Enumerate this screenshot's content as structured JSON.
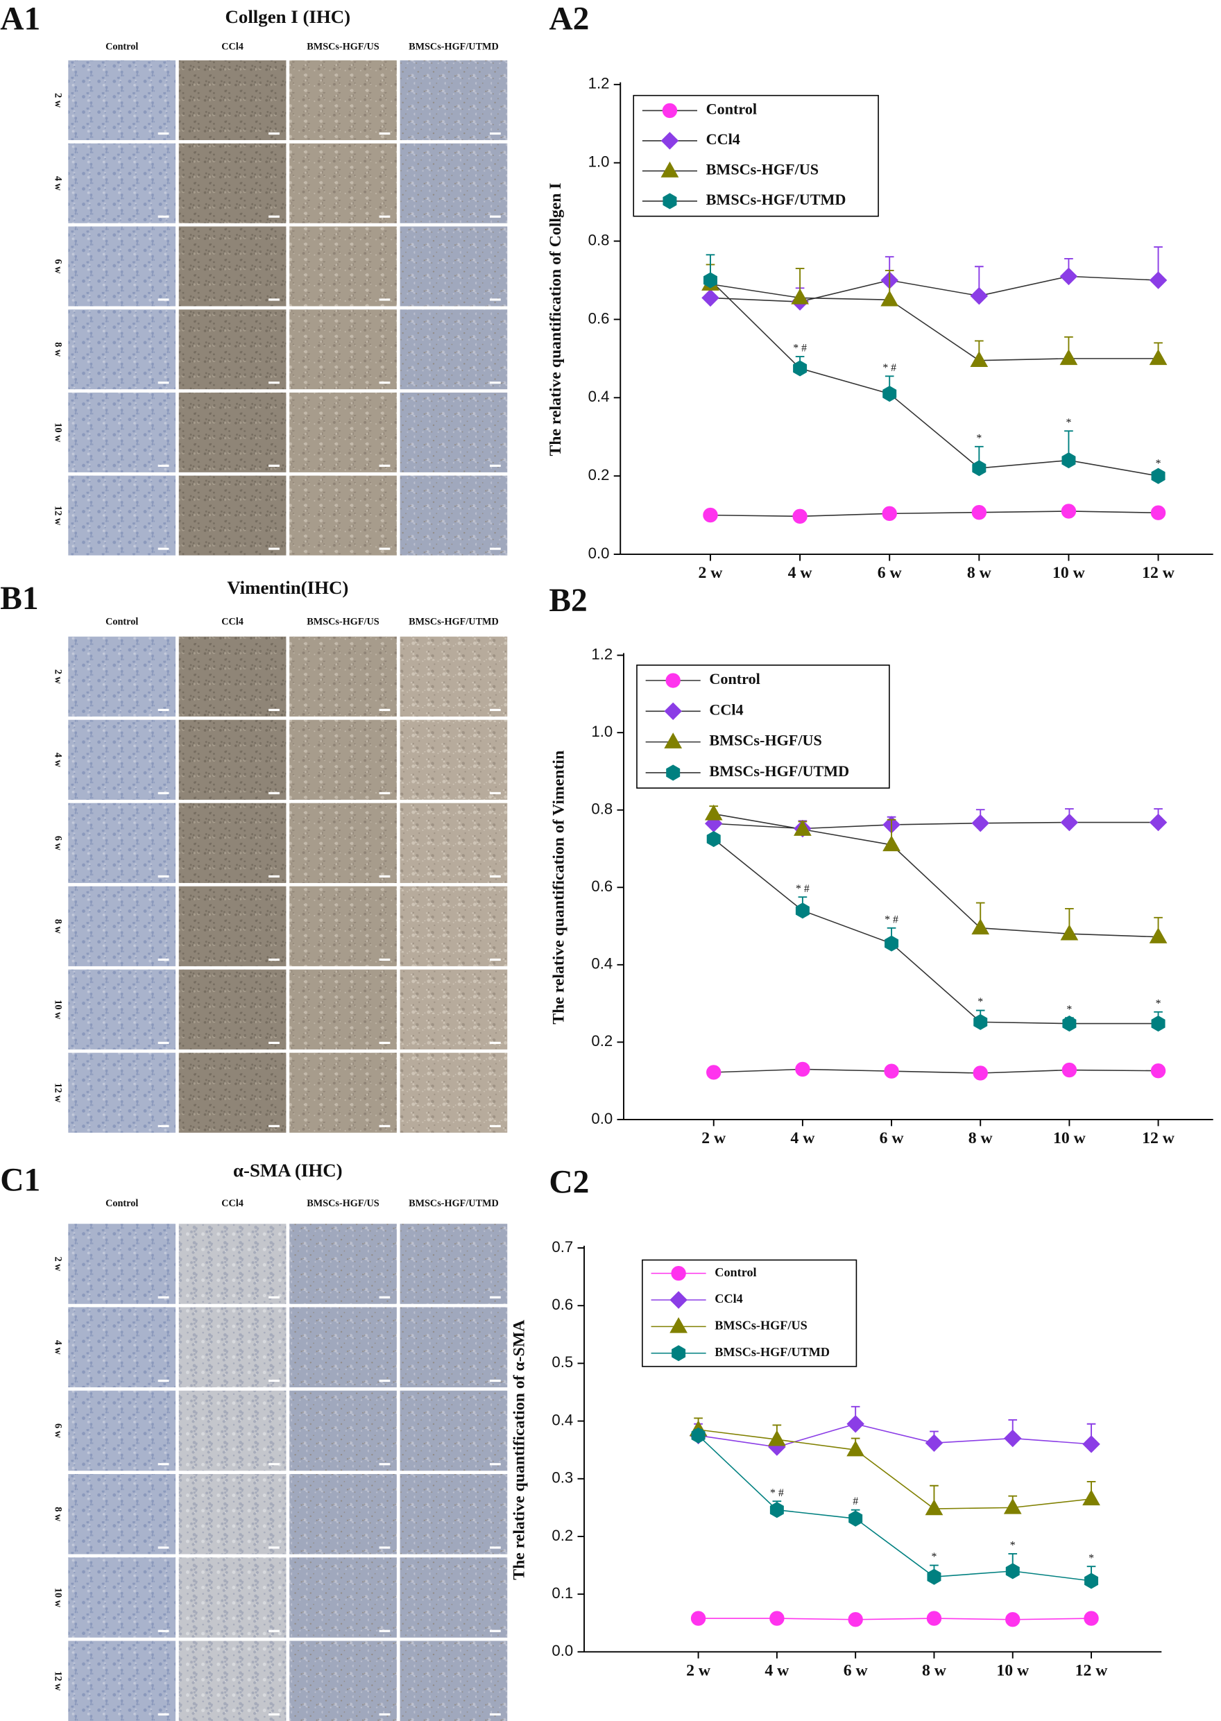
{
  "image_panels": [
    {
      "label": "A1",
      "title": "Collgen I (IHC)",
      "columns": [
        "Control",
        "CCl4",
        "BMSCs-HGF/US",
        "BMSCs-HGF/UTMD"
      ],
      "rows": [
        "2 w",
        "4 w",
        "6 w",
        "8 w",
        "10 w",
        "12 w"
      ]
    },
    {
      "label": "B1",
      "title": "Vimentin(IHC)",
      "columns": [
        "Control",
        "CCl4",
        "BMSCs-HGF/US",
        "BMSCs-HGF/UTMD"
      ],
      "rows": [
        "2 w",
        "4 w",
        "6 w",
        "8 w",
        "10 w",
        "12 w"
      ]
    },
    {
      "label": "C1",
      "title": "α-SMA (IHC)",
      "columns": [
        "Control",
        "CCl4",
        "BMSCs-HGF/US",
        "BMSCs-HGF/UTMD"
      ],
      "rows": [
        "2 w",
        "4 w",
        "6 w",
        "8 w",
        "10 w",
        "12 w"
      ]
    }
  ],
  "chart_data": [
    {
      "type": "line",
      "panel_label": "A2",
      "y_label": "The relative quantification of Collgen I",
      "categories": [
        "2 w",
        "4 w",
        "6 w",
        "8 w",
        "10 w",
        "12 w"
      ],
      "ylim": [
        0,
        1.2
      ],
      "yticks": [
        {
          "value": 0,
          "label": "0.0"
        },
        0.2,
        0.4,
        0.6,
        0.8,
        {
          "value": 1,
          "label": "1.0"
        },
        1.2
      ],
      "legend": "upper left",
      "series": [
        {
          "name": "Control",
          "color": "#ff33ee",
          "line_color": "#333333",
          "marker": "circle",
          "values": [
            0.1,
            0.097,
            0.104,
            0.107,
            0.11,
            0.106
          ],
          "errors": [
            0.005,
            0.005,
            0.005,
            0.005,
            0.006,
            0.005
          ],
          "annotations": [
            null,
            null,
            null,
            null,
            null,
            null
          ]
        },
        {
          "name": "CCl4",
          "color": "#8b3de6",
          "line_color": "#333333",
          "marker": "diamond",
          "values": [
            0.655,
            0.645,
            0.7,
            0.66,
            0.71,
            0.7
          ],
          "errors": [
            0.03,
            0.035,
            0.06,
            0.075,
            0.045,
            0.085
          ],
          "annotations": [
            null,
            null,
            null,
            null,
            null,
            null
          ]
        },
        {
          "name": "BMSCs-HGF/US",
          "color": "#808000",
          "line_color": "#333333",
          "marker": "triangle",
          "values": [
            0.69,
            0.655,
            0.65,
            0.495,
            0.5,
            0.5
          ],
          "errors": [
            0.05,
            0.075,
            0.075,
            0.05,
            0.055,
            0.04
          ],
          "annotations": [
            null,
            null,
            null,
            null,
            null,
            null
          ]
        },
        {
          "name": "BMSCs-HGF/UTMD",
          "color": "#008080",
          "line_color": "#333333",
          "marker": "hexagon",
          "values": [
            0.7,
            0.475,
            0.41,
            0.22,
            0.24,
            0.2
          ],
          "errors": [
            0.065,
            0.03,
            0.045,
            0.055,
            0.075,
            0.01
          ],
          "annotations": [
            null,
            "* #",
            "* #",
            "*",
            "*",
            "*"
          ]
        }
      ]
    },
    {
      "type": "line",
      "panel_label": "B2",
      "y_label": "The relative quantification of Vimentin",
      "categories": [
        "2 w",
        "4 w",
        "6 w",
        "8 w",
        "10 w",
        "12 w"
      ],
      "ylim": [
        0,
        1.2
      ],
      "yticks": [
        {
          "value": 0,
          "label": "0.0"
        },
        0.2,
        0.4,
        0.6,
        0.8,
        {
          "value": 1,
          "label": "1.0"
        },
        1.2
      ],
      "legend": "upper left",
      "series": [
        {
          "name": "Control",
          "color": "#ff33ee",
          "line_color": "#333333",
          "marker": "circle",
          "values": [
            0.122,
            0.13,
            0.125,
            0.12,
            0.128,
            0.126
          ],
          "errors": [
            0.01,
            0.01,
            0.01,
            0.01,
            0.01,
            0.01
          ],
          "annotations": [
            null,
            null,
            null,
            null,
            null,
            null
          ]
        },
        {
          "name": "CCl4",
          "color": "#8b3de6",
          "line_color": "#333333",
          "marker": "diamond",
          "values": [
            0.765,
            0.752,
            0.762,
            0.766,
            0.768,
            0.768
          ],
          "errors": [
            0.02,
            0.02,
            0.02,
            0.035,
            0.035,
            0.035
          ],
          "annotations": [
            null,
            null,
            null,
            null,
            null,
            null
          ]
        },
        {
          "name": "BMSCs-HGF/US",
          "color": "#808000",
          "line_color": "#333333",
          "marker": "triangle",
          "values": [
            0.79,
            0.75,
            0.71,
            0.495,
            0.48,
            0.472
          ],
          "errors": [
            0.02,
            0.02,
            0.065,
            0.065,
            0.065,
            0.05
          ],
          "annotations": [
            null,
            null,
            null,
            null,
            null,
            null
          ]
        },
        {
          "name": "BMSCs-HGF/UTMD",
          "color": "#008080",
          "line_color": "#333333",
          "marker": "hexagon",
          "values": [
            0.725,
            0.54,
            0.455,
            0.252,
            0.248,
            0.248
          ],
          "errors": [
            0.01,
            0.035,
            0.04,
            0.03,
            0.015,
            0.03
          ],
          "annotations": [
            null,
            "* #",
            "* #",
            "*",
            "*",
            "*"
          ]
        }
      ]
    },
    {
      "type": "line",
      "panel_label": "C2",
      "y_label": "The relative quantification of α-SMA",
      "categories": [
        "2 w",
        "4 w",
        "6 w",
        "8 w",
        "10 w",
        "12 w"
      ],
      "ylim": [
        0,
        0.7
      ],
      "yticks": [
        {
          "value": 0,
          "label": "0.0"
        },
        0.1,
        0.2,
        0.3,
        0.4,
        0.5,
        0.6,
        0.7
      ],
      "legend": "upper left",
      "series": [
        {
          "name": "Control",
          "color": "#ff33ee",
          "line_color": "#ff33ee",
          "marker": "circle",
          "values": [
            0.058,
            0.058,
            0.056,
            0.058,
            0.056,
            0.058
          ],
          "errors": [
            0.002,
            0.002,
            0.002,
            0.002,
            0.002,
            0.002
          ],
          "annotations": [
            null,
            null,
            null,
            null,
            null,
            null
          ]
        },
        {
          "name": "CCl4",
          "color": "#8b3de6",
          "line_color": "#8b3de6",
          "marker": "diamond",
          "values": [
            0.375,
            0.355,
            0.395,
            0.362,
            0.37,
            0.36
          ],
          "errors": [
            0.02,
            0.01,
            0.03,
            0.02,
            0.032,
            0.035
          ],
          "annotations": [
            null,
            null,
            null,
            null,
            null,
            null
          ]
        },
        {
          "name": "BMSCs-HGF/US",
          "color": "#808000",
          "line_color": "#808000",
          "marker": "triangle",
          "values": [
            0.385,
            0.368,
            0.35,
            0.248,
            0.25,
            0.265
          ],
          "errors": [
            0.02,
            0.025,
            0.02,
            0.04,
            0.02,
            0.03
          ],
          "annotations": [
            null,
            null,
            null,
            null,
            null,
            null
          ]
        },
        {
          "name": "BMSCs-HGF/UTMD",
          "color": "#008080",
          "line_color": "#008080",
          "marker": "hexagon",
          "values": [
            0.375,
            0.246,
            0.231,
            0.13,
            0.14,
            0.123
          ],
          "errors": [
            0.01,
            0.015,
            0.015,
            0.02,
            0.03,
            0.025
          ],
          "annotations": [
            null,
            "* #",
            "#",
            "*",
            "*",
            "*"
          ]
        }
      ]
    }
  ]
}
